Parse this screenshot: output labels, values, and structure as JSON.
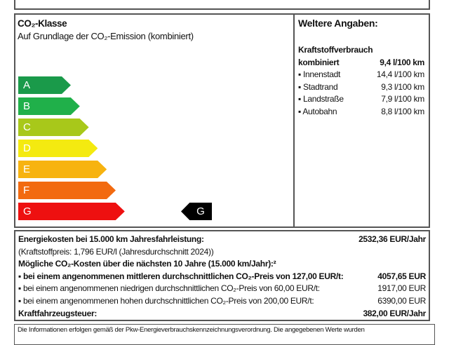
{
  "co2_class": {
    "title": "CO₂-Klasse",
    "subtitle": "Auf Grundlage der CO₂-Emission (kombiniert)",
    "classes": [
      {
        "label": "A",
        "color": "#1a9a4a"
      },
      {
        "label": "B",
        "color": "#20b04a"
      },
      {
        "label": "C",
        "color": "#a8c81a"
      },
      {
        "label": "D",
        "color": "#f4ea10"
      },
      {
        "label": "E",
        "color": "#f7b310"
      },
      {
        "label": "F",
        "color": "#f26a10"
      },
      {
        "label": "G",
        "color": "#ee1010"
      }
    ],
    "current_class": "G"
  },
  "details": {
    "title": "Weltere Angaben:",
    "fuel_heading": "Kraftstoffverbrauch",
    "rows": [
      {
        "label": "kombiniert",
        "value": "9,4 l/100 km"
      },
      {
        "label": "▪ Innenstadt",
        "value": "14,4 l/100 km"
      },
      {
        "label": "▪ Stadtrand",
        "value": "9,3 l/100 km"
      },
      {
        "label": "▪ Landstraße",
        "value": "7,9 l/100 km"
      },
      {
        "label": "▪ Autobahn",
        "value": "8,8 l/100 km"
      }
    ]
  },
  "costs": {
    "energy_label": "Energiekosten bei 15.000 km Jahresfahrleistung:",
    "energy_value": "2532,36 EUR/Jahr",
    "fuel_price": "(Kraftstoffpreis: 1,796 EUR/l (Jahresdurchschnitt 2024))",
    "co2_heading": "Mögliche CO₂-Kosten über die nächsten 10 Jahre (15.000 km/Jahr):²",
    "co2_rows": [
      {
        "label": "▪ bei einem angenommenen mittleren durchschnittlichen CO₂-Preis von 127,00 EUR/t:",
        "value": "4057,65 EUR"
      },
      {
        "label": "▪ bei einem angenommenen niedrigen durchschnittlichen CO₂-Preis von 60,00 EUR/t:",
        "value": "1917,00 EUR"
      },
      {
        "label": "▪ bei einem angenommenen hohen durchschnittlichen CO₂-Preis von 200,00 EUR/t:",
        "value": "6390,00 EUR"
      }
    ],
    "tax_label": "Kraftfahrzeugsteuer:",
    "tax_value": "382,00 EUR/Jahr"
  },
  "footer": "Die Informationen erfolgen gemäß der Pkw-Energieverbrauchskennzeichnungsverordnung. Die angegebenen Werte wurden"
}
